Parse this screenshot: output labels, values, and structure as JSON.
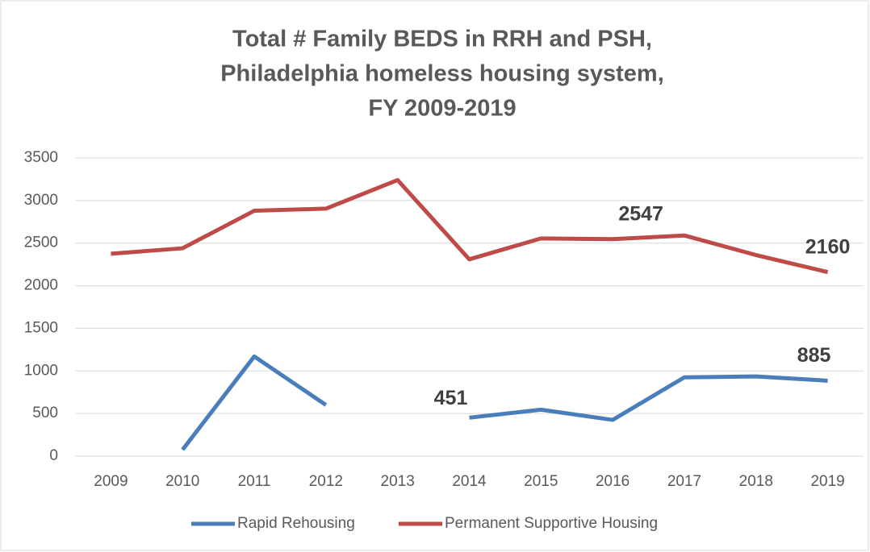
{
  "chart_data": {
    "type": "line",
    "title": [
      "Total # Family BEDS in RRH and PSH,",
      "Philadelphia homeless housing system,",
      "FY 2009-2019"
    ],
    "categories": [
      "2009",
      "2010",
      "2011",
      "2012",
      "2013",
      "2014",
      "2015",
      "2016",
      "2017",
      "2018",
      "2019"
    ],
    "series": [
      {
        "name": "Rapid Rehousing",
        "color": "#4a7ebb",
        "values": [
          null,
          75,
          1170,
          600,
          null,
          451,
          545,
          425,
          925,
          935,
          885
        ],
        "value_labels": [
          null,
          null,
          null,
          null,
          null,
          "451",
          null,
          null,
          null,
          null,
          "885"
        ]
      },
      {
        "name": "Permanent Supportive Housing",
        "color": "#be4b48",
        "values": [
          2375,
          2440,
          2880,
          2905,
          3240,
          2310,
          2555,
          2547,
          2590,
          2360,
          2160
        ],
        "value_labels": [
          null,
          null,
          null,
          null,
          null,
          null,
          null,
          "2547",
          null,
          null,
          "2160"
        ]
      }
    ],
    "ylim": [
      0,
      3500
    ],
    "yticks": [
      0,
      500,
      1000,
      1500,
      2000,
      2500,
      3000,
      3500
    ],
    "grid": true,
    "legend": "bottom"
  }
}
